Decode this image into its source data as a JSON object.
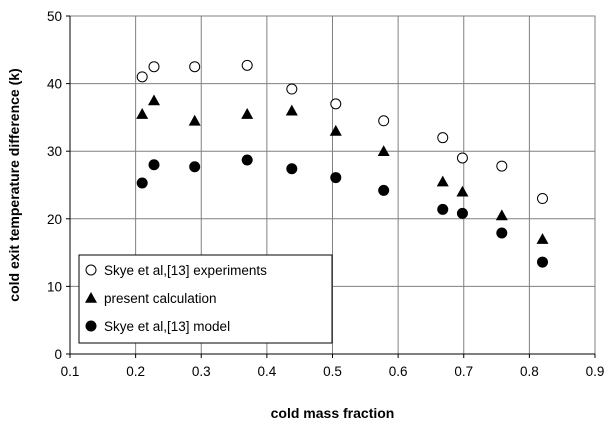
{
  "chart_data": {
    "type": "scatter",
    "xlabel": "cold mass fraction",
    "ylabel": "cold exit temperature difference (k)",
    "xlim": [
      0.1,
      0.9
    ],
    "ylim": [
      0,
      50
    ],
    "xticks": [
      "0.1",
      "0.2",
      "0.3",
      "0.4",
      "0.5",
      "0.6",
      "0.7",
      "0.8",
      "0.9"
    ],
    "yticks": [
      "0",
      "10",
      "20",
      "30",
      "40",
      "50"
    ],
    "grid": true,
    "legend_position": "bottom-left",
    "series": [
      {
        "name": "Skye et al,[13] experiments",
        "marker": "open-circle",
        "color": "#000000",
        "x": [
          0.21,
          0.228,
          0.29,
          0.37,
          0.438,
          0.505,
          0.578,
          0.668,
          0.698,
          0.758,
          0.82
        ],
        "y": [
          41.0,
          42.5,
          42.5,
          42.7,
          39.2,
          37.0,
          34.5,
          32.0,
          29.0,
          27.8,
          23.0
        ]
      },
      {
        "name": "present calculation",
        "marker": "filled-triangle",
        "color": "#000000",
        "x": [
          0.21,
          0.228,
          0.29,
          0.37,
          0.438,
          0.505,
          0.578,
          0.668,
          0.698,
          0.758,
          0.82
        ],
        "y": [
          35.5,
          37.5,
          34.5,
          35.5,
          36.0,
          33.0,
          30.0,
          25.5,
          24.0,
          20.5,
          17.0
        ]
      },
      {
        "name": "Skye et al,[13] model",
        "marker": "filled-circle",
        "color": "#000000",
        "x": [
          0.21,
          0.228,
          0.29,
          0.37,
          0.438,
          0.505,
          0.578,
          0.668,
          0.698,
          0.758,
          0.82
        ],
        "y": [
          25.3,
          28.0,
          27.7,
          28.7,
          27.4,
          26.1,
          24.2,
          21.4,
          20.8,
          17.9,
          13.6
        ]
      }
    ]
  }
}
